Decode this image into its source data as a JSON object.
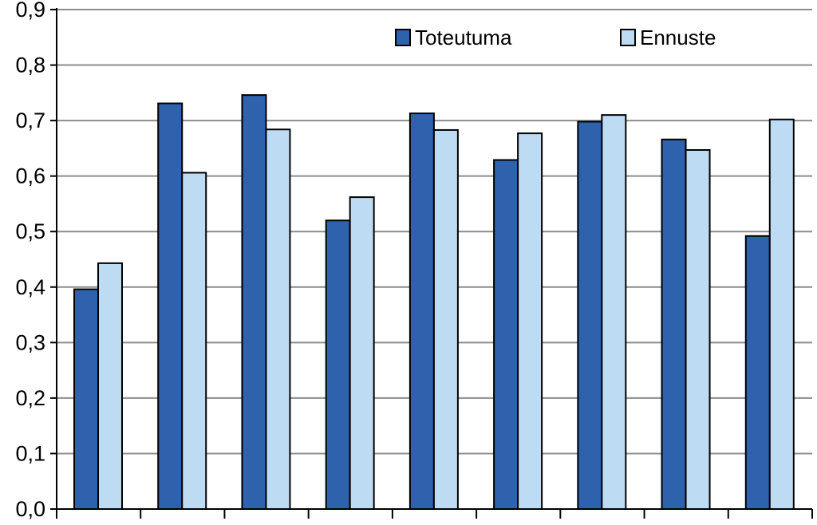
{
  "chart_data": {
    "type": "bar",
    "title": "",
    "xlabel": "",
    "ylabel": "",
    "ylim": [
      0,
      0.9
    ],
    "y_ticks": [
      "0,0",
      "0,1",
      "0,2",
      "0,3",
      "0,4",
      "0,5",
      "0,6",
      "0,7",
      "0,8",
      "0,9"
    ],
    "categories": [
      "",
      "",
      "",
      "",
      "",
      "",
      "",
      "",
      ""
    ],
    "grid": true,
    "legend_position": "top-right",
    "series": [
      {
        "name": "Toteutuma",
        "color": "#2e62ad",
        "values": [
          0.396,
          0.731,
          0.746,
          0.52,
          0.713,
          0.629,
          0.698,
          0.666,
          0.492
        ]
      },
      {
        "name": "Ennuste",
        "color": "#bddcf3",
        "values": [
          0.443,
          0.606,
          0.684,
          0.562,
          0.683,
          0.677,
          0.71,
          0.647,
          0.702
        ]
      }
    ]
  }
}
